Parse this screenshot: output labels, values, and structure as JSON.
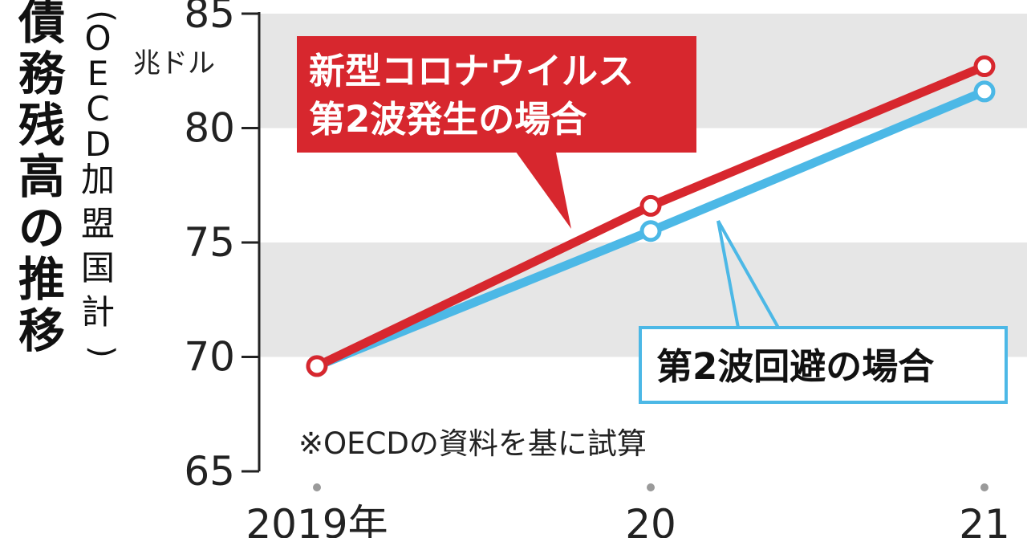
{
  "chart_data": {
    "type": "line",
    "title": "債務残高の推移",
    "subtitle": "（OECD加盟国計）",
    "unit": "兆ドル",
    "ylim": [
      65,
      85
    ],
    "yticks": [
      "65",
      "70",
      "75",
      "80",
      "85"
    ],
    "categories": [
      "2019年",
      "20",
      "21"
    ],
    "series": [
      {
        "name": "新型コロナウイルス第2波発生の場合",
        "label_lines": [
          "新型コロナウイルス",
          "第2波発生の場合"
        ],
        "color": "#d7272e",
        "values": [
          69.6,
          76.6,
          82.7
        ]
      },
      {
        "name": "第2波回避の場合",
        "label_lines": [
          "第2波回避の場合"
        ],
        "color": "#4cb8e6",
        "values": [
          69.6,
          75.5,
          81.6
        ]
      }
    ],
    "note": "※OECDの資料を基に試算",
    "grid": "alternating gray bands",
    "band_color": "#e6e6e6"
  }
}
